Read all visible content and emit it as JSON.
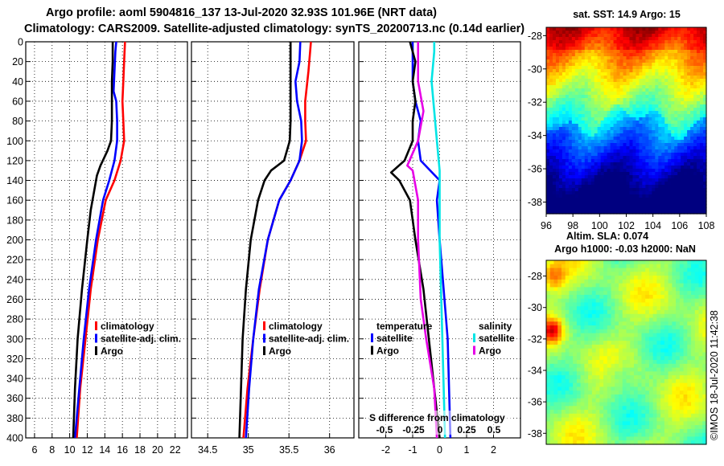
{
  "title_line1": "Argo profile: aoml 5904816_137 13-Jul-2020 32.93S 101.96E (NRT data)",
  "title_line2": "Climatology: CARS2009. Satellite-adjusted climatology: synTS_20200713.nc (0.14d earlier)",
  "watermark": "©IMOS 18-Jul-2020 11:42:38",
  "colors": {
    "climatology": "#ff0000",
    "satellite": "#0000ff",
    "argo": "#000000",
    "sat_salinity": "#00e5e5",
    "argo_salinity": "#e600e6"
  },
  "chart_data": [
    {
      "type": "line",
      "id": "temperature",
      "xlim": [
        5,
        23.4
      ],
      "xticks": [
        "6",
        "8",
        "10",
        "12",
        "14",
        "16",
        "18",
        "20",
        "22"
      ],
      "xtick_values": [
        6,
        8,
        10,
        12,
        14,
        16,
        18,
        20,
        22
      ],
      "ylim": [
        400,
        0
      ],
      "yticks": [
        "0",
        "20",
        "40",
        "60",
        "80",
        "100",
        "120",
        "140",
        "160",
        "180",
        "200",
        "220",
        "240",
        "260",
        "280",
        "300",
        "320",
        "340",
        "360",
        "380",
        "400"
      ],
      "ytick_values": [
        0,
        20,
        40,
        60,
        80,
        100,
        120,
        140,
        160,
        180,
        200,
        220,
        240,
        260,
        280,
        300,
        320,
        340,
        360,
        380,
        400
      ],
      "legend": [
        "climatology",
        "satellite-adj. clim.",
        "Argo"
      ],
      "series": [
        {
          "name": "climatology",
          "color": "red",
          "depth": [
            0,
            20,
            40,
            60,
            80,
            100,
            120,
            140,
            160,
            200,
            250,
            300,
            350,
            400
          ],
          "values": [
            16.3,
            16.2,
            16.1,
            16.0,
            16.1,
            16.2,
            15.8,
            15.1,
            14.1,
            13.2,
            12.4,
            11.8,
            11.2,
            10.8
          ]
        },
        {
          "name": "satellite-adj. clim.",
          "color": "blue",
          "depth": [
            0,
            10,
            30,
            50,
            60,
            80,
            100,
            120,
            140,
            160,
            200,
            250,
            300,
            350,
            400
          ],
          "values": [
            15.3,
            15.2,
            15.1,
            15.0,
            15.3,
            15.4,
            15.4,
            15.1,
            14.5,
            13.8,
            13.0,
            12.2,
            11.6,
            11.1,
            10.6
          ]
        },
        {
          "name": "Argo",
          "color": "black",
          "depth": [
            0,
            20,
            40,
            60,
            80,
            100,
            110,
            125,
            135,
            150,
            170,
            200,
            250,
            300,
            350,
            400
          ],
          "values": [
            14.9,
            14.9,
            14.8,
            14.8,
            14.8,
            14.7,
            14.3,
            13.5,
            13.1,
            12.8,
            12.4,
            12.0,
            11.4,
            10.9,
            10.6,
            10.4
          ]
        }
      ]
    },
    {
      "type": "line",
      "id": "salinity",
      "xlim": [
        34.3,
        36.3
      ],
      "xticks": [
        "34.5",
        "35",
        "35.5",
        "36"
      ],
      "xtick_values": [
        34.5,
        35.0,
        35.5,
        36.0
      ],
      "ylim": [
        400,
        0
      ],
      "legend": [
        "climatology",
        "satellite-adj. clim.",
        "Argo"
      ],
      "series": [
        {
          "name": "climatology",
          "color": "red",
          "depth": [
            0,
            10,
            30,
            60,
            80,
            100,
            120,
            140,
            160,
            200,
            250,
            300,
            350,
            400
          ],
          "values": [
            35.77,
            35.76,
            35.74,
            35.7,
            35.7,
            35.71,
            35.63,
            35.52,
            35.38,
            35.24,
            35.14,
            35.06,
            34.99,
            34.94
          ]
        },
        {
          "name": "satellite-adj. clim.",
          "color": "blue",
          "depth": [
            0,
            20,
            40,
            60,
            80,
            100,
            120,
            140,
            160,
            200,
            250,
            300,
            350,
            400
          ],
          "values": [
            35.64,
            35.63,
            35.58,
            35.6,
            35.65,
            35.66,
            35.63,
            35.52,
            35.38,
            35.24,
            35.13,
            35.06,
            35.01,
            34.97
          ]
        },
        {
          "name": "Argo",
          "color": "black",
          "depth": [
            0,
            20,
            40,
            60,
            80,
            100,
            120,
            130,
            140,
            160,
            200,
            250,
            300,
            350,
            400
          ],
          "values": [
            35.52,
            35.52,
            35.52,
            35.52,
            35.52,
            35.51,
            35.44,
            35.28,
            35.2,
            35.12,
            35.03,
            34.97,
            34.93,
            34.91,
            34.89
          ]
        }
      ]
    },
    {
      "type": "line",
      "id": "difference",
      "xlim": [
        -3,
        3
      ],
      "xticks": [
        "-2",
        "-1",
        "0",
        "1",
        "2"
      ],
      "xtick_values": [
        -2,
        -1,
        0,
        1,
        2
      ],
      "xlabel": "S difference from climatology",
      "s_ticks": [
        "-0.5",
        "-0.25",
        "0",
        "0.25",
        "0.5"
      ],
      "ylim": [
        400,
        0
      ],
      "legend_temperature": {
        "header": "temperature",
        "items": [
          "satellite",
          "Argo"
        ]
      },
      "legend_salinity": {
        "header": "salinity",
        "items": [
          "satellite",
          "Argo"
        ]
      },
      "series": [
        {
          "name": "temperature satellite",
          "color": "blue",
          "depth": [
            0,
            20,
            40,
            60,
            80,
            100,
            120,
            140,
            160,
            200,
            300,
            400
          ],
          "values": [
            -1.0,
            -1.0,
            -1.0,
            -0.9,
            -0.7,
            -0.8,
            -0.7,
            0.0,
            -0.1,
            0.0,
            0.3,
            0.4
          ]
        },
        {
          "name": "temperature Argo",
          "color": "black",
          "depth": [
            0,
            20,
            40,
            60,
            80,
            100,
            120,
            132,
            140,
            160,
            200,
            250,
            300,
            350,
            400
          ],
          "values": [
            -1.1,
            -0.9,
            -1.0,
            -0.9,
            -1.0,
            -1.0,
            -1.3,
            -1.8,
            -1.5,
            -1.1,
            -0.9,
            -0.6,
            -0.4,
            -0.2,
            0.0
          ]
        },
        {
          "name": "salinity satellite",
          "color": "cyan",
          "depth": [
            0,
            10,
            40,
            70,
            100,
            130,
            160,
            200,
            300,
            400
          ],
          "values": [
            -0.2,
            -0.2,
            -0.3,
            -0.2,
            -0.1,
            0.0,
            0.0,
            0.0,
            0.1,
            0.2
          ]
        },
        {
          "name": "salinity Argo",
          "color": "magenta",
          "depth": [
            0,
            40,
            70,
            100,
            125,
            130,
            160,
            200,
            260,
            300,
            350,
            400
          ],
          "values": [
            -0.8,
            -0.8,
            -0.6,
            -0.8,
            -1.2,
            -1.0,
            -0.8,
            -0.8,
            -0.7,
            -0.5,
            -0.2,
            -0.1
          ]
        }
      ]
    }
  ],
  "sst_map": {
    "title": "sat. SST: 14.9 Argo: 15",
    "xticks": [
      "96",
      "98",
      "100",
      "102",
      "104",
      "106",
      "108"
    ],
    "xtick_values": [
      96,
      98,
      100,
      102,
      104,
      106,
      108
    ],
    "yticks": [
      "-28",
      "-30",
      "-32",
      "-34",
      "-36",
      "-38"
    ],
    "ytick_values": [
      -28,
      -30,
      -32,
      -34,
      -36,
      -38
    ],
    "lon_range": [
      96,
      108
    ],
    "lat_range": [
      -27.5,
      -38.7
    ],
    "argo_position": [
      101.96,
      -32.93
    ]
  },
  "sla_map": {
    "title1": "Altim. SLA: 0.074",
    "title2": "Argo h1000: -0.03 h2000: NaN",
    "yticks": [
      "-28",
      "-30",
      "-32",
      "-34",
      "-36",
      "-38"
    ],
    "ytick_values": [
      -28,
      -30,
      -32,
      -34,
      -36,
      -38
    ],
    "lat_range": [
      -27.0,
      -38.7
    ]
  }
}
